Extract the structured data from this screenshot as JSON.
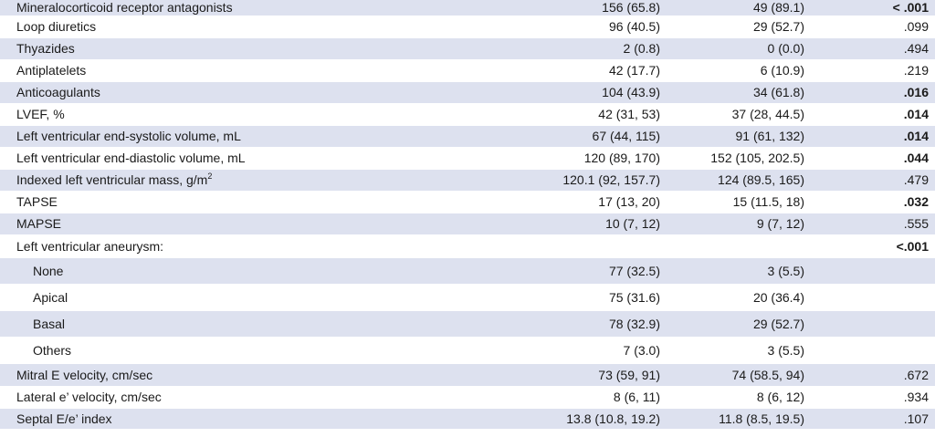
{
  "rows": [
    {
      "label": "Mineralocorticoid receptor antagonists",
      "g1": "156 (65.8)",
      "g2": "49 (89.1)",
      "p": "< .001",
      "p_bold": true,
      "shaded": true,
      "sub": false
    },
    {
      "label": "Loop diuretics",
      "g1": "96 (40.5)",
      "g2": "29 (52.7)",
      "p": ".099",
      "p_bold": false,
      "shaded": false,
      "sub": false
    },
    {
      "label": "Thyazides",
      "g1": "2 (0.8)",
      "g2": "0 (0.0)",
      "p": ".494",
      "p_bold": false,
      "shaded": true,
      "sub": false
    },
    {
      "label": "Antiplatelets",
      "g1": "42 (17.7)",
      "g2": "6 (10.9)",
      "p": ".219",
      "p_bold": false,
      "shaded": false,
      "sub": false
    },
    {
      "label": "Anticoagulants",
      "g1": "104 (43.9)",
      "g2": "34 (61.8)",
      "p": ".016",
      "p_bold": true,
      "shaded": true,
      "sub": false
    },
    {
      "label": "LVEF, %",
      "g1": "42 (31, 53)",
      "g2": "37 (28, 44.5)",
      "p": ".014",
      "p_bold": true,
      "shaded": false,
      "sub": false
    },
    {
      "label": "Left ventricular end-systolic volume, mL",
      "g1": "67 (44, 115)",
      "g2": "91 (61, 132)",
      "p": ".014",
      "p_bold": true,
      "shaded": true,
      "sub": false
    },
    {
      "label": "Left ventricular end-diastolic volume, mL",
      "g1": "120 (89, 170)",
      "g2": "152 (105, 202.5)",
      "p": ".044",
      "p_bold": true,
      "shaded": false,
      "sub": false
    },
    {
      "label": "Indexed left ventricular mass, g/m",
      "label_sup": "2",
      "g1": "120.1 (92, 157.7)",
      "g2": "124 (89.5, 165)",
      "p": ".479",
      "p_bold": false,
      "shaded": true,
      "sub": false
    },
    {
      "label": "TAPSE",
      "g1": "17 (13, 20)",
      "g2": "15 (11.5, 18)",
      "p": ".032",
      "p_bold": true,
      "shaded": false,
      "sub": false
    },
    {
      "label": "MAPSE",
      "g1": "10 (7, 12)",
      "g2": "9 (7, 12)",
      "p": ".555",
      "p_bold": false,
      "shaded": true,
      "sub": false
    },
    {
      "label": "Left ventricular aneurysm:",
      "g1": "",
      "g2": "",
      "p": "<.001",
      "p_bold": true,
      "shaded": false,
      "sub": false
    },
    {
      "label": "None",
      "g1": "77 (32.5)",
      "g2": "3 (5.5)",
      "p": "",
      "p_bold": false,
      "shaded": true,
      "sub": true
    },
    {
      "label": "Apical",
      "g1": "75 (31.6)",
      "g2": "20 (36.4)",
      "p": "",
      "p_bold": false,
      "shaded": false,
      "sub": true
    },
    {
      "label": "Basal",
      "g1": "78 (32.9)",
      "g2": "29 (52.7)",
      "p": "",
      "p_bold": false,
      "shaded": true,
      "sub": true
    },
    {
      "label": "Others",
      "g1": "7 (3.0)",
      "g2": "3 (5.5)",
      "p": "",
      "p_bold": false,
      "shaded": false,
      "sub": true
    },
    {
      "label": "Mitral E velocity, cm/sec",
      "g1": "73 (59, 91)",
      "g2": "74 (58.5, 94)",
      "p": ".672",
      "p_bold": false,
      "shaded": true,
      "sub": false
    },
    {
      "label": "Lateral e’ velocity, cm/sec",
      "g1": "8 (6, 11)",
      "g2": "8 (6, 12)",
      "p": ".934",
      "p_bold": false,
      "shaded": false,
      "sub": false
    },
    {
      "label": "Septal E/e’ index",
      "g1": "13.8 (10.8, 19.2)",
      "g2": "11.8 (8.5, 19.5)",
      "p": ".107",
      "p_bold": false,
      "shaded": true,
      "sub": false
    }
  ]
}
